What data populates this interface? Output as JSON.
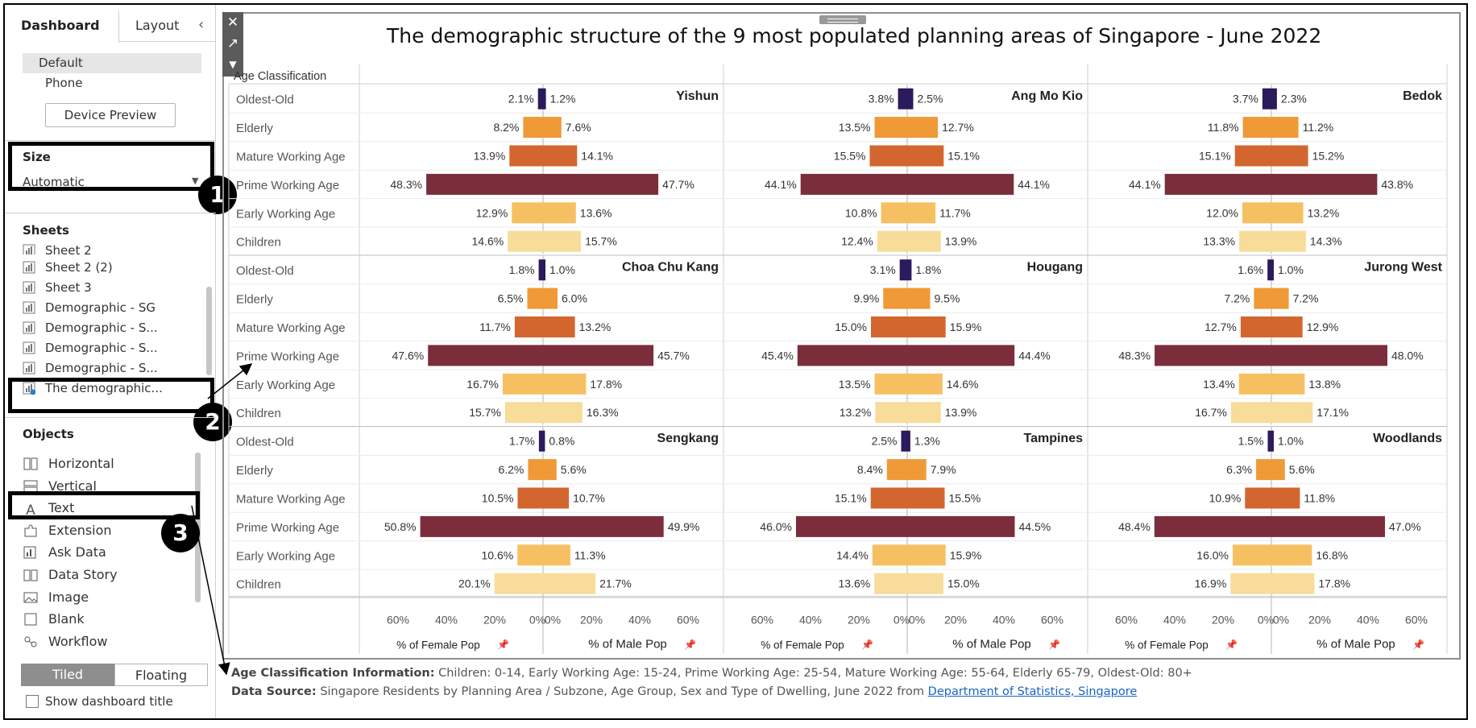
{
  "sidebar": {
    "tabs": [
      {
        "label": "Dashboard",
        "active": true
      },
      {
        "label": "Layout",
        "active": false
      }
    ],
    "devices": [
      "Default",
      "Phone"
    ],
    "device_preview_label": "Device Preview",
    "size": {
      "title": "Size",
      "value": "Automatic"
    },
    "sheets_title": "Sheets",
    "sheets": [
      "Sheet 2",
      "Sheet 2 (2)",
      "Sheet 3",
      "Demographic - SG",
      "Demographic - S...",
      "Demographic - S...",
      "Demographic - S...",
      "The demographic..."
    ],
    "objects_title": "Objects",
    "objects": [
      {
        "label": "Horizontal",
        "icon": "horizontal-container-icon"
      },
      {
        "label": "Vertical",
        "icon": "vertical-container-icon"
      },
      {
        "label": "Text",
        "icon": "text-icon"
      },
      {
        "label": "Extension",
        "icon": "extension-icon"
      },
      {
        "label": "Ask Data",
        "icon": "ask-data-icon"
      },
      {
        "label": "Data Story",
        "icon": "data-story-icon"
      },
      {
        "label": "Image",
        "icon": "image-icon"
      },
      {
        "label": "Blank",
        "icon": "blank-icon"
      },
      {
        "label": "Workflow",
        "icon": "workflow-icon"
      }
    ],
    "layout_toggle": {
      "tiled": "Tiled",
      "floating": "Floating"
    },
    "show_title_label": "Show dashboard title",
    "callouts": [
      "1",
      "2",
      "3"
    ]
  },
  "dashboard": {
    "title": "The demographic structure of the 9 most populated planning areas of Singapore - June 2022",
    "footer": {
      "age_label": "Age Classification Information:",
      "age_text": "Children: 0-14, Early Working Age: 15-24, Prime Working Age: 25-54, Mature Working Age: 55-64, Elderly 65-79, Oldest-Old: 80+",
      "source_label": "Data Source:",
      "source_text": "Singapore Residents by Planning Area / Subzone, Age Group, Sex and Type of Dwelling, June 2022 from",
      "source_link": "Department of Statistics, Singapore"
    }
  },
  "chart_data": {
    "type": "bar",
    "subtype": "population-pyramid-small-multiples",
    "row_header": "Age Classification",
    "categories": [
      "Oldest-Old",
      "Elderly",
      "Mature Working Age",
      "Prime Working Age",
      "Early Working Age",
      "Children"
    ],
    "category_colors": [
      "#2b1a5c",
      "#ef9a37",
      "#d3662e",
      "#7b2d3b",
      "#f6c062",
      "#f7dc9a"
    ],
    "female_axis_label": "% of Female Pop",
    "male_axis_label": "% of Male Pop",
    "female_ticks": [
      "60%",
      "40%",
      "20%",
      "0%"
    ],
    "male_ticks": [
      "0%",
      "20%",
      "40%",
      "60%"
    ],
    "xlim": [
      0,
      60
    ],
    "areas": [
      {
        "name": "Yishun",
        "female": [
          2.1,
          8.2,
          13.9,
          48.3,
          12.9,
          14.6
        ],
        "male": [
          1.2,
          7.6,
          14.1,
          47.7,
          13.6,
          15.7
        ]
      },
      {
        "name": "Ang Mo Kio",
        "female": [
          3.8,
          13.5,
          15.5,
          44.1,
          10.8,
          12.4
        ],
        "male": [
          2.5,
          12.7,
          15.1,
          44.1,
          11.7,
          13.9
        ]
      },
      {
        "name": "Bedok",
        "female": [
          3.7,
          11.8,
          15.1,
          44.1,
          12.0,
          13.3
        ],
        "male": [
          2.3,
          11.2,
          15.2,
          43.8,
          13.2,
          14.3
        ]
      },
      {
        "name": "Choa Chu Kang",
        "female": [
          1.8,
          6.5,
          11.7,
          47.6,
          16.7,
          15.7
        ],
        "male": [
          1.0,
          6.0,
          13.2,
          45.7,
          17.8,
          16.3
        ]
      },
      {
        "name": "Hougang",
        "female": [
          3.1,
          9.9,
          15.0,
          45.4,
          13.5,
          13.2
        ],
        "male": [
          1.8,
          9.5,
          15.9,
          44.4,
          14.6,
          13.9
        ]
      },
      {
        "name": "Jurong West",
        "female": [
          1.6,
          7.2,
          12.7,
          48.3,
          13.4,
          16.7
        ],
        "male": [
          1.0,
          7.2,
          12.9,
          48.0,
          13.8,
          17.1
        ]
      },
      {
        "name": "Sengkang",
        "female": [
          1.7,
          6.2,
          10.5,
          50.8,
          10.6,
          20.1
        ],
        "male": [
          0.8,
          5.6,
          10.7,
          49.9,
          11.3,
          21.7
        ]
      },
      {
        "name": "Tampines",
        "female": [
          2.5,
          8.4,
          15.1,
          46.0,
          14.4,
          13.6
        ],
        "male": [
          1.3,
          7.9,
          15.5,
          44.5,
          15.9,
          15.0
        ]
      },
      {
        "name": "Woodlands",
        "female": [
          1.5,
          6.3,
          10.9,
          48.4,
          16.0,
          16.9
        ],
        "male": [
          1.0,
          5.6,
          11.8,
          47.0,
          16.8,
          17.8
        ]
      }
    ]
  }
}
